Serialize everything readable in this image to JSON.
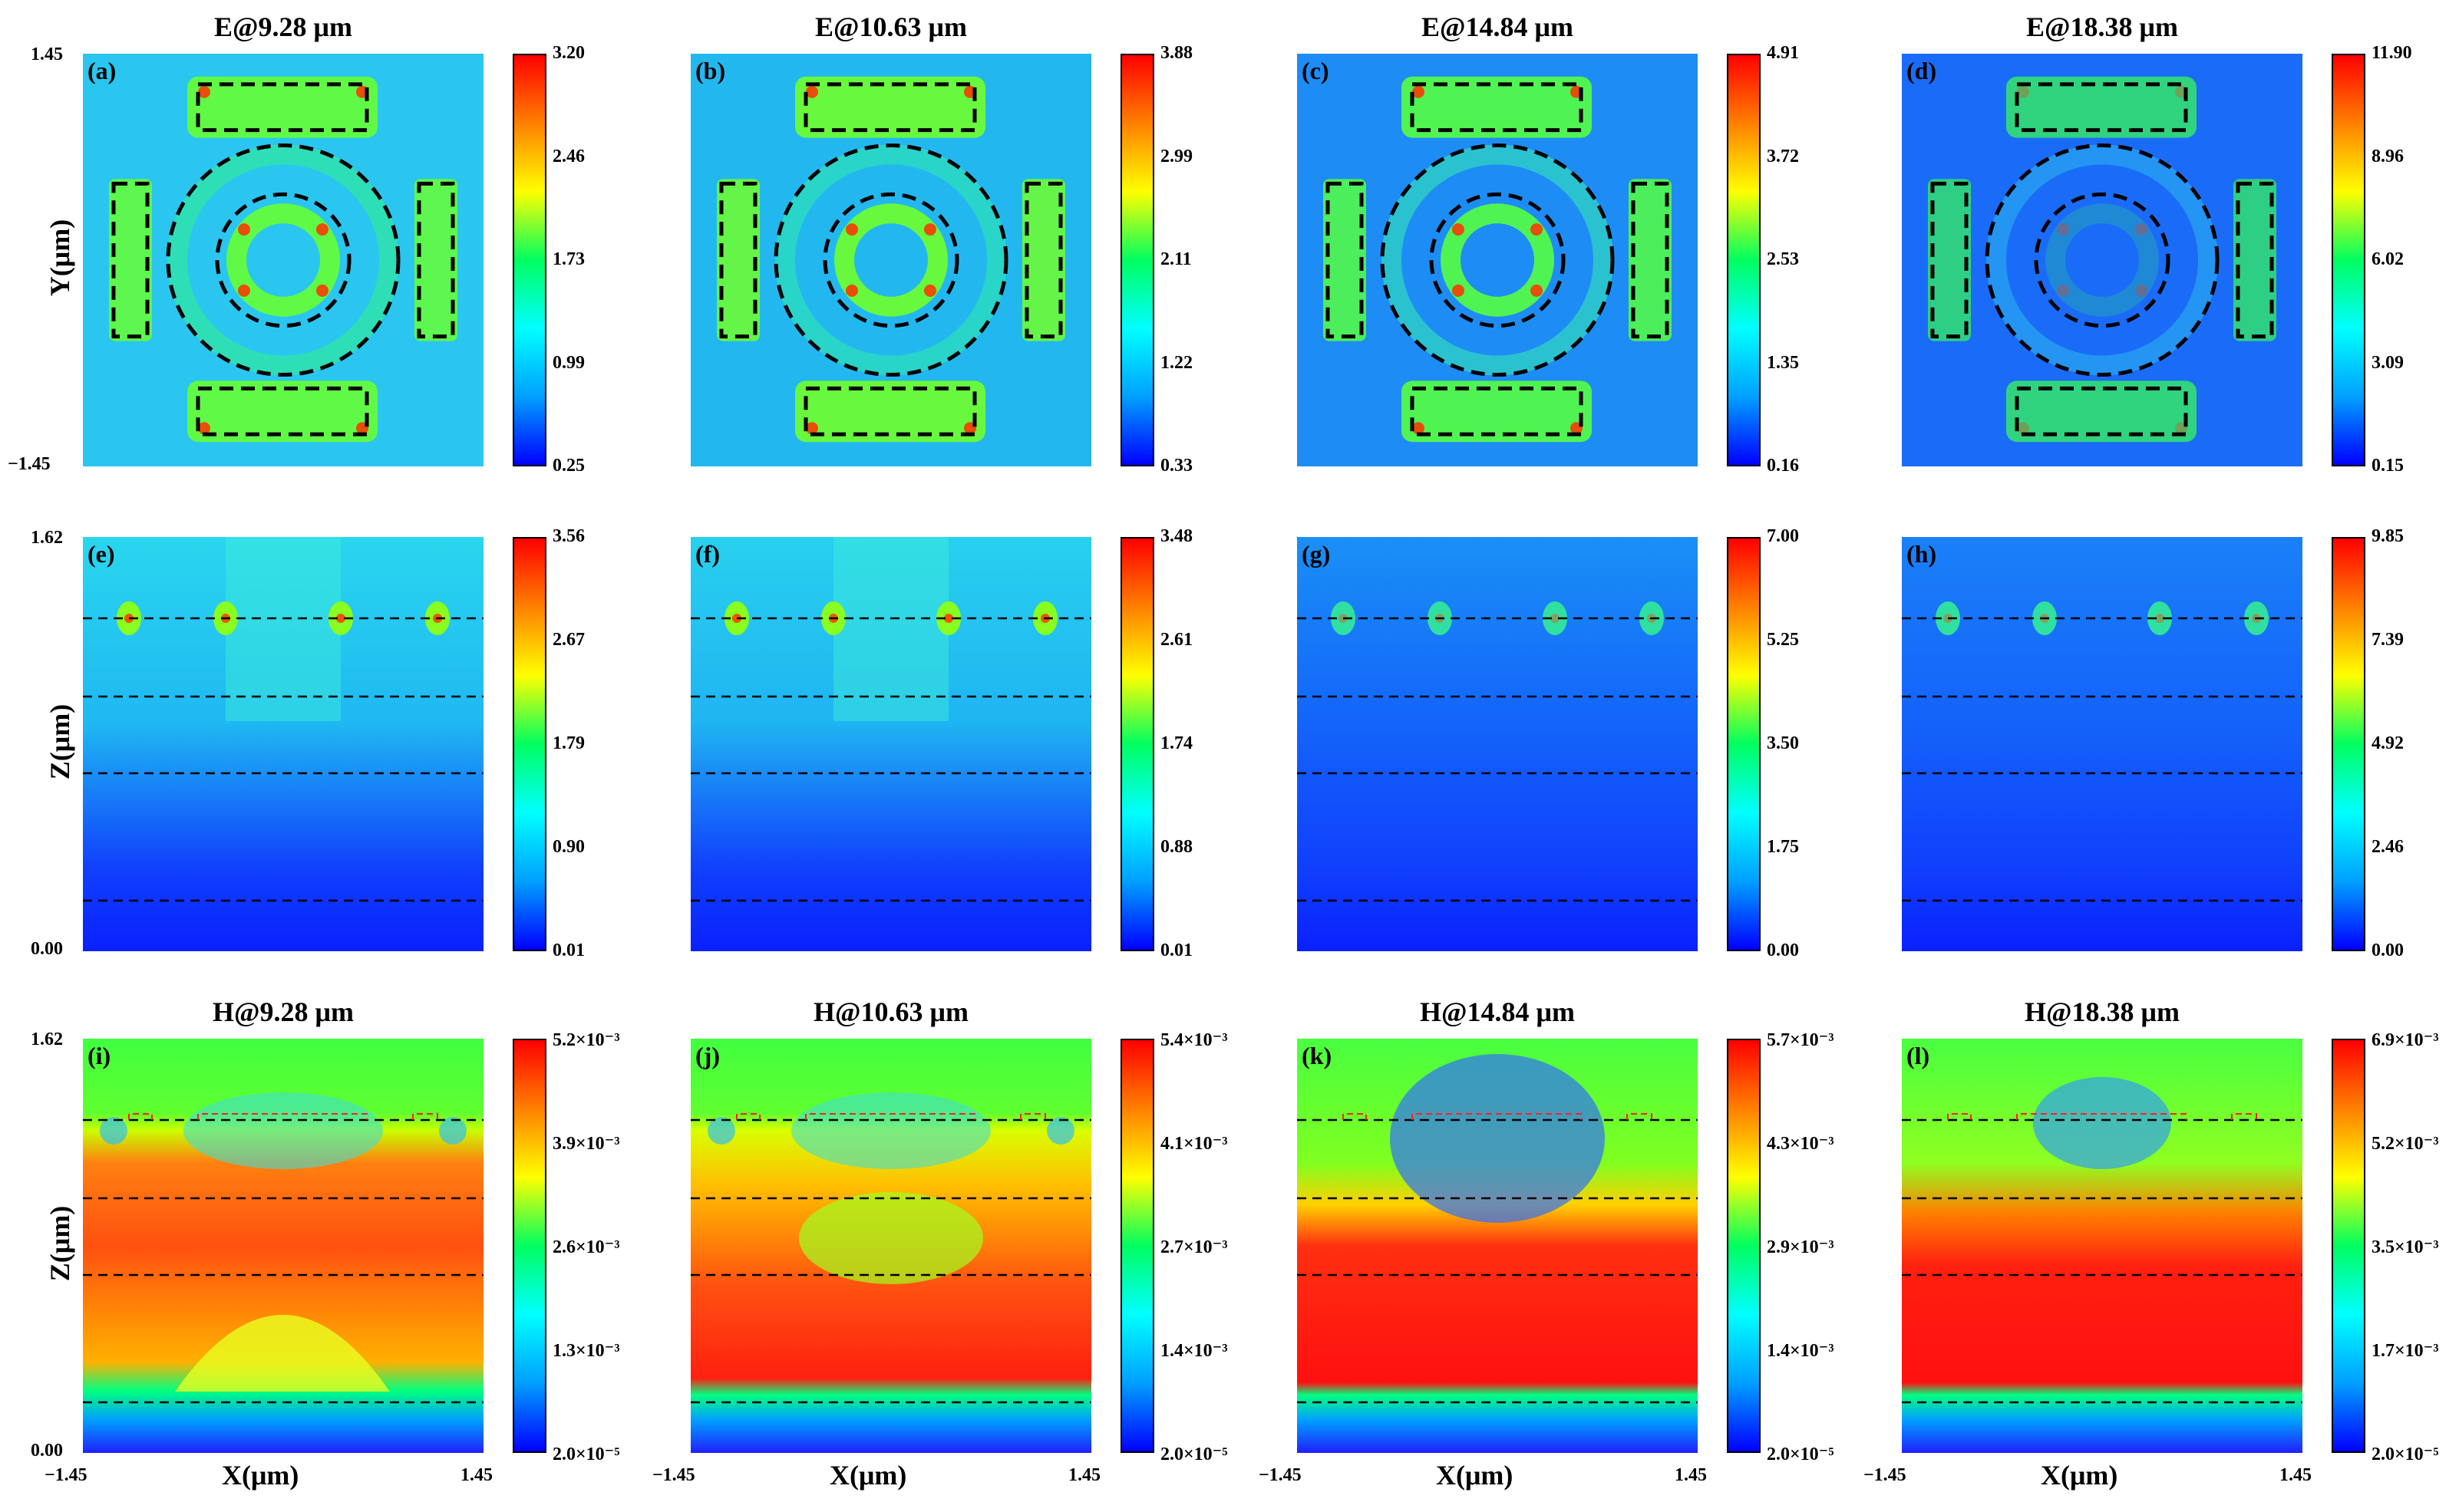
{
  "chart_data": {
    "type": "heatmap",
    "description_rows": [
      "E-field XY",
      "E-field XZ",
      "H-field XZ"
    ],
    "axes": {
      "x_label": "X(μm)",
      "y_label": "Y(μm)",
      "z_label": "Z(μm)",
      "x_range": [
        "−1.45",
        "1.45"
      ],
      "y_range": [
        "−1.45",
        "1.45"
      ],
      "z_range": [
        "0.00",
        "1.62"
      ]
    },
    "rows": [
      {
        "kind": "E_xy",
        "panels": [
          {
            "label": "(a)",
            "title": "E@9.28 μm",
            "ticks": [
              "3.20",
              "2.46",
              "1.73",
              "0.99",
              "0.25"
            ],
            "bg": "#2ac6ef"
          },
          {
            "label": "(b)",
            "title": "E@10.63 μm",
            "ticks": [
              "3.88",
              "2.99",
              "2.11",
              "1.22",
              "0.33"
            ],
            "bg": "#22b8ef"
          },
          {
            "label": "(c)",
            "title": "E@14.84 μm",
            "ticks": [
              "4.91",
              "3.72",
              "2.53",
              "1.35",
              "0.16"
            ],
            "bg": "#1e8cf5"
          },
          {
            "label": "(d)",
            "title": "E@18.38 μm",
            "ticks": [
              "11.90",
              "8.96",
              "6.02",
              "3.09",
              "0.15"
            ],
            "bg": "#1a6cf8"
          }
        ]
      },
      {
        "kind": "E_xz",
        "panels": [
          {
            "label": "(e)",
            "ticks": [
              "3.56",
              "2.67",
              "1.79",
              "0.90",
              "0.01"
            ]
          },
          {
            "label": "(f)",
            "ticks": [
              "3.48",
              "2.61",
              "1.74",
              "0.88",
              "0.01"
            ]
          },
          {
            "label": "(g)",
            "ticks": [
              "7.00",
              "5.25",
              "3.50",
              "1.75",
              "0.00"
            ]
          },
          {
            "label": "(h)",
            "ticks": [
              "9.85",
              "7.39",
              "4.92",
              "2.46",
              "0.00"
            ]
          }
        ]
      },
      {
        "kind": "H_xz",
        "panels": [
          {
            "label": "(i)",
            "title": "H@9.28 μm",
            "ticks": [
              "5.2×10⁻³",
              "3.9×10⁻³",
              "2.6×10⁻³",
              "1.3×10⁻³",
              "2.0×10⁻⁵"
            ]
          },
          {
            "label": "(j)",
            "title": "H@10.63 μm",
            "ticks": [
              "5.4×10⁻³",
              "4.1×10⁻³",
              "2.7×10⁻³",
              "1.4×10⁻³",
              "2.0×10⁻⁵"
            ]
          },
          {
            "label": "(k)",
            "title": "H@14.84 μm",
            "ticks": [
              "5.7×10⁻³",
              "4.3×10⁻³",
              "2.9×10⁻³",
              "1.4×10⁻³",
              "2.0×10⁻⁵"
            ]
          },
          {
            "label": "(l)",
            "title": "H@18.38 μm",
            "ticks": [
              "6.9×10⁻³",
              "5.2×10⁻³",
              "3.5×10⁻³",
              "1.7×10⁻³",
              "2.0×10⁻⁵"
            ]
          }
        ]
      }
    ],
    "colormap": [
      "#0000ff",
      "#00a0ff",
      "#00ffff",
      "#00ff60",
      "#ffff00",
      "#ff8000",
      "#ff0000"
    ]
  }
}
